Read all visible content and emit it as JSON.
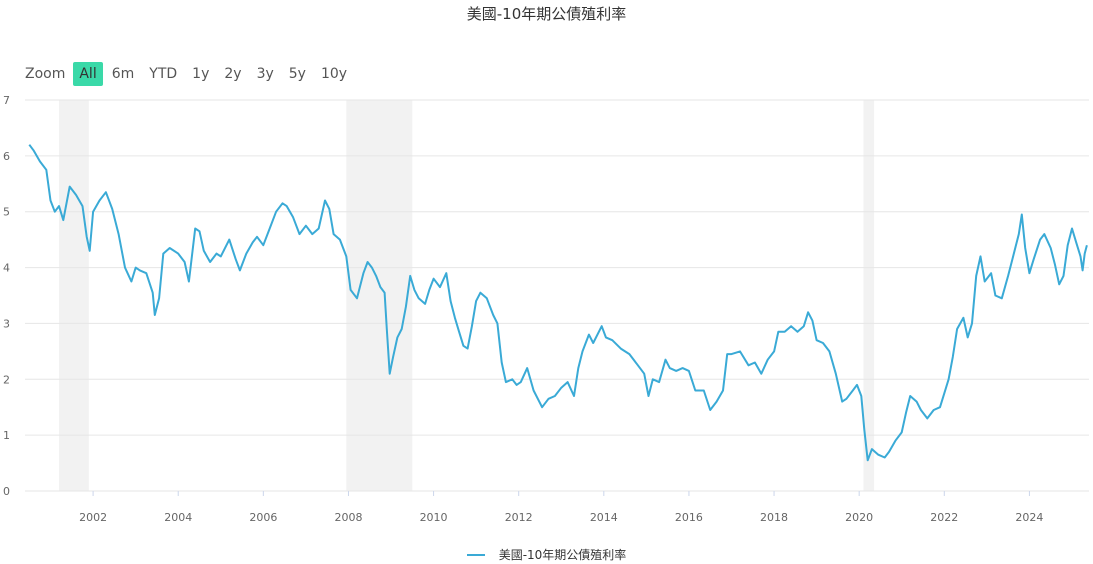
{
  "zoom": {
    "label": "Zoom",
    "buttons": [
      "All",
      "6m",
      "YTD",
      "1y",
      "2y",
      "3y",
      "5y",
      "10y"
    ],
    "active": "All"
  },
  "colors": {
    "series": "#3aaad6",
    "active_button": "#3ad9a8",
    "recession": "#f2f2f2",
    "grid": "#e6e6e6"
  },
  "chart_data": {
    "type": "line",
    "title": "美國-10年期公債殖利率",
    "xlabel": "",
    "ylabel": "",
    "xlim": [
      2000.4,
      2025.4
    ],
    "ylim": [
      0,
      7
    ],
    "y_ticks": [
      "0",
      "1",
      "2",
      "3",
      "4",
      "5",
      "6",
      "7"
    ],
    "x_ticks": [
      "2002",
      "2004",
      "2006",
      "2008",
      "2010",
      "2012",
      "2014",
      "2016",
      "2018",
      "2020",
      "2022",
      "2024"
    ],
    "legend": "bottom-center",
    "grid": true,
    "recession_bands": [
      [
        2001.2,
        2001.9
      ],
      [
        2007.95,
        2009.5
      ],
      [
        2020.1,
        2020.35
      ]
    ],
    "series": [
      {
        "name": "美國-10年期公債殖利率",
        "points": [
          [
            2000.5,
            6.2
          ],
          [
            2000.6,
            6.1
          ],
          [
            2000.75,
            5.9
          ],
          [
            2000.9,
            5.75
          ],
          [
            2001.0,
            5.2
          ],
          [
            2001.1,
            5.0
          ],
          [
            2001.2,
            5.1
          ],
          [
            2001.3,
            4.85
          ],
          [
            2001.45,
            5.45
          ],
          [
            2001.6,
            5.3
          ],
          [
            2001.75,
            5.1
          ],
          [
            2001.85,
            4.55
          ],
          [
            2001.92,
            4.3
          ],
          [
            2002.0,
            5.0
          ],
          [
            2002.15,
            5.2
          ],
          [
            2002.3,
            5.35
          ],
          [
            2002.45,
            5.05
          ],
          [
            2002.6,
            4.6
          ],
          [
            2002.75,
            4.0
          ],
          [
            2002.9,
            3.75
          ],
          [
            2003.0,
            4.0
          ],
          [
            2003.1,
            3.95
          ],
          [
            2003.25,
            3.9
          ],
          [
            2003.4,
            3.55
          ],
          [
            2003.45,
            3.15
          ],
          [
            2003.55,
            3.45
          ],
          [
            2003.65,
            4.25
          ],
          [
            2003.8,
            4.35
          ],
          [
            2004.0,
            4.25
          ],
          [
            2004.15,
            4.1
          ],
          [
            2004.25,
            3.75
          ],
          [
            2004.4,
            4.7
          ],
          [
            2004.5,
            4.65
          ],
          [
            2004.6,
            4.3
          ],
          [
            2004.75,
            4.1
          ],
          [
            2004.9,
            4.25
          ],
          [
            2005.0,
            4.2
          ],
          [
            2005.2,
            4.5
          ],
          [
            2005.35,
            4.15
          ],
          [
            2005.45,
            3.95
          ],
          [
            2005.6,
            4.25
          ],
          [
            2005.75,
            4.45
          ],
          [
            2005.85,
            4.55
          ],
          [
            2006.0,
            4.4
          ],
          [
            2006.15,
            4.7
          ],
          [
            2006.3,
            5.0
          ],
          [
            2006.45,
            5.15
          ],
          [
            2006.55,
            5.1
          ],
          [
            2006.7,
            4.9
          ],
          [
            2006.85,
            4.6
          ],
          [
            2007.0,
            4.75
          ],
          [
            2007.15,
            4.6
          ],
          [
            2007.3,
            4.7
          ],
          [
            2007.45,
            5.2
          ],
          [
            2007.55,
            5.05
          ],
          [
            2007.65,
            4.6
          ],
          [
            2007.8,
            4.5
          ],
          [
            2007.95,
            4.2
          ],
          [
            2008.05,
            3.6
          ],
          [
            2008.2,
            3.45
          ],
          [
            2008.35,
            3.9
          ],
          [
            2008.45,
            4.1
          ],
          [
            2008.55,
            4.0
          ],
          [
            2008.65,
            3.85
          ],
          [
            2008.75,
            3.65
          ],
          [
            2008.85,
            3.55
          ],
          [
            2008.9,
            2.9
          ],
          [
            2008.97,
            2.1
          ],
          [
            2009.05,
            2.4
          ],
          [
            2009.15,
            2.75
          ],
          [
            2009.25,
            2.9
          ],
          [
            2009.35,
            3.3
          ],
          [
            2009.45,
            3.85
          ],
          [
            2009.55,
            3.6
          ],
          [
            2009.65,
            3.45
          ],
          [
            2009.8,
            3.35
          ],
          [
            2009.9,
            3.6
          ],
          [
            2010.0,
            3.8
          ],
          [
            2010.15,
            3.65
          ],
          [
            2010.3,
            3.9
          ],
          [
            2010.4,
            3.4
          ],
          [
            2010.5,
            3.1
          ],
          [
            2010.6,
            2.85
          ],
          [
            2010.7,
            2.6
          ],
          [
            2010.8,
            2.55
          ],
          [
            2010.9,
            2.95
          ],
          [
            2011.0,
            3.4
          ],
          [
            2011.1,
            3.55
          ],
          [
            2011.25,
            3.45
          ],
          [
            2011.4,
            3.15
          ],
          [
            2011.5,
            3.0
          ],
          [
            2011.6,
            2.3
          ],
          [
            2011.7,
            1.95
          ],
          [
            2011.85,
            2.0
          ],
          [
            2011.95,
            1.9
          ],
          [
            2012.05,
            1.95
          ],
          [
            2012.2,
            2.2
          ],
          [
            2012.35,
            1.8
          ],
          [
            2012.55,
            1.5
          ],
          [
            2012.7,
            1.65
          ],
          [
            2012.85,
            1.7
          ],
          [
            2013.0,
            1.85
          ],
          [
            2013.15,
            1.95
          ],
          [
            2013.3,
            1.7
          ],
          [
            2013.4,
            2.2
          ],
          [
            2013.5,
            2.5
          ],
          [
            2013.65,
            2.8
          ],
          [
            2013.75,
            2.65
          ],
          [
            2013.95,
            2.95
          ],
          [
            2014.05,
            2.75
          ],
          [
            2014.2,
            2.7
          ],
          [
            2014.4,
            2.55
          ],
          [
            2014.6,
            2.45
          ],
          [
            2014.8,
            2.25
          ],
          [
            2014.95,
            2.1
          ],
          [
            2015.05,
            1.7
          ],
          [
            2015.15,
            2.0
          ],
          [
            2015.3,
            1.95
          ],
          [
            2015.45,
            2.35
          ],
          [
            2015.55,
            2.2
          ],
          [
            2015.7,
            2.15
          ],
          [
            2015.85,
            2.2
          ],
          [
            2016.0,
            2.15
          ],
          [
            2016.15,
            1.8
          ],
          [
            2016.35,
            1.8
          ],
          [
            2016.5,
            1.45
          ],
          [
            2016.65,
            1.6
          ],
          [
            2016.8,
            1.8
          ],
          [
            2016.9,
            2.45
          ],
          [
            2017.0,
            2.45
          ],
          [
            2017.2,
            2.5
          ],
          [
            2017.4,
            2.25
          ],
          [
            2017.55,
            2.3
          ],
          [
            2017.7,
            2.1
          ],
          [
            2017.85,
            2.35
          ],
          [
            2018.0,
            2.5
          ],
          [
            2018.1,
            2.85
          ],
          [
            2018.25,
            2.85
          ],
          [
            2018.4,
            2.95
          ],
          [
            2018.55,
            2.85
          ],
          [
            2018.7,
            2.95
          ],
          [
            2018.8,
            3.2
          ],
          [
            2018.9,
            3.05
          ],
          [
            2019.0,
            2.7
          ],
          [
            2019.15,
            2.65
          ],
          [
            2019.3,
            2.5
          ],
          [
            2019.45,
            2.1
          ],
          [
            2019.6,
            1.6
          ],
          [
            2019.7,
            1.65
          ],
          [
            2019.85,
            1.8
          ],
          [
            2019.95,
            1.9
          ],
          [
            2020.05,
            1.7
          ],
          [
            2020.12,
            1.1
          ],
          [
            2020.2,
            0.55
          ],
          [
            2020.3,
            0.75
          ],
          [
            2020.45,
            0.65
          ],
          [
            2020.6,
            0.6
          ],
          [
            2020.7,
            0.7
          ],
          [
            2020.85,
            0.9
          ],
          [
            2021.0,
            1.05
          ],
          [
            2021.1,
            1.4
          ],
          [
            2021.2,
            1.7
          ],
          [
            2021.35,
            1.6
          ],
          [
            2021.45,
            1.45
          ],
          [
            2021.6,
            1.3
          ],
          [
            2021.75,
            1.45
          ],
          [
            2021.9,
            1.5
          ],
          [
            2022.0,
            1.75
          ],
          [
            2022.1,
            2.0
          ],
          [
            2022.2,
            2.4
          ],
          [
            2022.3,
            2.9
          ],
          [
            2022.45,
            3.1
          ],
          [
            2022.55,
            2.75
          ],
          [
            2022.65,
            3.0
          ],
          [
            2022.75,
            3.85
          ],
          [
            2022.85,
            4.2
          ],
          [
            2022.95,
            3.75
          ],
          [
            2023.1,
            3.9
          ],
          [
            2023.2,
            3.5
          ],
          [
            2023.35,
            3.45
          ],
          [
            2023.5,
            3.85
          ],
          [
            2023.6,
            4.15
          ],
          [
            2023.75,
            4.6
          ],
          [
            2023.82,
            4.95
          ],
          [
            2023.9,
            4.35
          ],
          [
            2024.0,
            3.9
          ],
          [
            2024.1,
            4.15
          ],
          [
            2024.25,
            4.5
          ],
          [
            2024.35,
            4.6
          ],
          [
            2024.5,
            4.35
          ],
          [
            2024.6,
            4.05
          ],
          [
            2024.7,
            3.7
          ],
          [
            2024.8,
            3.85
          ],
          [
            2024.9,
            4.4
          ],
          [
            2025.0,
            4.7
          ],
          [
            2025.1,
            4.45
          ],
          [
            2025.2,
            4.2
          ],
          [
            2025.25,
            3.95
          ],
          [
            2025.3,
            4.25
          ],
          [
            2025.35,
            4.4
          ]
        ]
      }
    ]
  }
}
